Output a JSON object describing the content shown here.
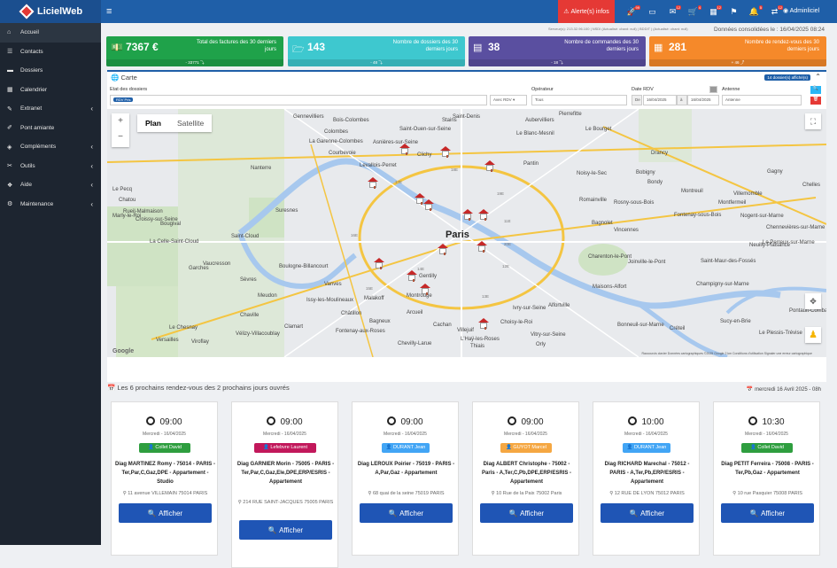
{
  "app": {
    "name": "LicielWeb",
    "alert_label": "Alerte(s) infos",
    "user": "Adminliciel"
  },
  "topicons": [
    {
      "icon": "rocket-icon",
      "badge": "99"
    },
    {
      "icon": "card-icon",
      "badge": ""
    },
    {
      "icon": "mail-icon",
      "badge": "12"
    },
    {
      "icon": "cart-icon",
      "badge": "4"
    },
    {
      "icon": "calendar-icon",
      "badge": "12"
    },
    {
      "icon": "flag-icon",
      "badge": ""
    },
    {
      "icon": "bell-icon",
      "badge": "5"
    },
    {
      "icon": "transfer-icon",
      "badge": "12"
    }
  ],
  "sidebar": [
    {
      "label": "Accueil",
      "icon": "home-icon",
      "chev": ""
    },
    {
      "label": "Contacts",
      "icon": "contacts-icon",
      "chev": ""
    },
    {
      "label": "Dossiers",
      "icon": "folder-icon",
      "chev": ""
    },
    {
      "label": "Calendrier",
      "icon": "calendar-icon",
      "chev": ""
    },
    {
      "label": "Extranet",
      "icon": "extranet-icon",
      "chev": "‹"
    },
    {
      "label": "Pont amiante",
      "icon": "bridge-icon",
      "chev": ""
    },
    {
      "label": "Compléments",
      "icon": "complements-icon",
      "chev": "‹"
    },
    {
      "label": "Outils",
      "icon": "tools-icon",
      "chev": "‹"
    },
    {
      "label": "Aide",
      "icon": "help-icon",
      "chev": "‹"
    },
    {
      "label": "Maintenance",
      "icon": "maintenance-icon",
      "chev": "‹"
    }
  ],
  "infos": {
    "server": "Serveur(s): 213.32.96.100 | NSDI (Actualisé: chant: null) | BDDIT | (Actualisé: chant: null)",
    "consolidated": "Données consolidées le : 16/04/2025 08:24"
  },
  "cards": [
    {
      "value": "7367 €",
      "label": "Total des factures des 30 derniers jours",
      "foot": "- 33771 ⤵",
      "color": "#1fa24a",
      "icon": "money-icon"
    },
    {
      "value": "143",
      "label": "Nombre de dossiers des 30 derniers jours",
      "foot": "- 48 ⤵",
      "color": "#3ec8cf",
      "icon": "folder-open-icon"
    },
    {
      "value": "38",
      "label": "Nombre de commandes des 30 derniers jours",
      "foot": "- 18 ⤵",
      "color": "#5a4fa0",
      "icon": "list-icon"
    },
    {
      "value": "281",
      "label": "Nombre de rendez-vous des 30 derniers jours",
      "foot": "+ 46 ⤴",
      "color": "#f5892a",
      "icon": "calendar-icon"
    }
  ],
  "carte": {
    "title": "Carte",
    "badge": "14 dossier(s) affiché(s)",
    "etat_label": "Etat des dossiers",
    "etat_tag": "RDV Pris",
    "rdv_select": "Avec RDV",
    "operateur_label": "Opérateur",
    "operateur_value": "Tous",
    "date_label": "Date RDV",
    "date_de": "De",
    "date_from": "16/04/2025",
    "date_a": "à",
    "date_to": "16/04/2025",
    "antenne_label": "Antenne",
    "antenne_value": "Antenne"
  },
  "map": {
    "plan": "Plan",
    "satellite": "Satellite",
    "labels": [
      {
        "t": "Paris",
        "c": "big"
      },
      {
        "t": "Nanterre"
      },
      {
        "t": "Boulogne-Billancourt"
      },
      {
        "t": "Versailles"
      },
      {
        "t": "Montreuil"
      },
      {
        "t": "Saint-Ouen-sur-Seine"
      },
      {
        "t": "Pantin"
      },
      {
        "t": "Bobigny"
      },
      {
        "t": "Rosny-sous-Bois"
      },
      {
        "t": "Vincennes"
      },
      {
        "t": "Issy-les-Moulineaux"
      },
      {
        "t": "Montrouge"
      },
      {
        "t": "Ivry-sur-Seine"
      },
      {
        "t": "Vitry-sur-Seine"
      },
      {
        "t": "Créteil"
      },
      {
        "t": "Champigny-sur-Marne"
      },
      {
        "t": "Rueil-Malmaison"
      },
      {
        "t": "Suresnes"
      },
      {
        "t": "Courbevoie"
      },
      {
        "t": "Levallois-Perret"
      },
      {
        "t": "Clichy"
      },
      {
        "t": "Asnières-sur-Seine"
      },
      {
        "t": "Colombes"
      },
      {
        "t": "La Garenne-Colombes"
      },
      {
        "t": "Bois-Colombes"
      },
      {
        "t": "Gennevilliers"
      },
      {
        "t": "Saint-Denis"
      },
      {
        "t": "Aubervilliers"
      },
      {
        "t": "Drancy"
      },
      {
        "t": "Bondy"
      },
      {
        "t": "Noisy-le-Sec"
      },
      {
        "t": "Romainville"
      },
      {
        "t": "Bagnolet"
      },
      {
        "t": "Fontenay-sous-Bois"
      },
      {
        "t": "Nogent-sur-Marne"
      },
      {
        "t": "Le Perreux-sur-Marne"
      },
      {
        "t": "Neuilly-Plaisance"
      },
      {
        "t": "Villemomble"
      },
      {
        "t": "Gagny"
      },
      {
        "t": "Chelles"
      },
      {
        "t": "Joinville-le-Pont"
      },
      {
        "t": "Maisons-Alfort"
      },
      {
        "t": "Charenton-le-Pont"
      },
      {
        "t": "Saint-Maur-des-Fossés"
      },
      {
        "t": "Sucy-en-Brie"
      },
      {
        "t": "Chennevières-sur-Marne"
      },
      {
        "t": "Le Plessis-Trévise"
      },
      {
        "t": "Meudon"
      },
      {
        "t": "Clamart"
      },
      {
        "t": "Châtillon"
      },
      {
        "t": "Malakoff"
      },
      {
        "t": "Vanves"
      },
      {
        "t": "Sèvres"
      },
      {
        "t": "Chaville"
      },
      {
        "t": "Saint-Cloud"
      },
      {
        "t": "Garches"
      },
      {
        "t": "Vaucresson"
      },
      {
        "t": "La Celle-Saint-Cloud"
      },
      {
        "t": "Bougival"
      },
      {
        "t": "Marly-le-Roi"
      },
      {
        "t": "Chatou"
      },
      {
        "t": "Croissy-sur-Seine"
      },
      {
        "t": "Le Chesnay"
      },
      {
        "t": "Viroflay"
      },
      {
        "t": "Vélizy-Villacoublay"
      },
      {
        "t": "Le Pecq"
      },
      {
        "t": "Villejuif"
      },
      {
        "t": "Arcueil"
      },
      {
        "t": "Bagneux"
      },
      {
        "t": "Cachan"
      },
      {
        "t": "Fontenay-aux-Roses"
      },
      {
        "t": "L'Haÿ-les-Roses"
      },
      {
        "t": "Chevilly-Larue"
      },
      {
        "t": "Thiais"
      },
      {
        "t": "Orly"
      },
      {
        "t": "Choisy-le-Roi"
      },
      {
        "t": "Alfortville"
      },
      {
        "t": "Bonneuil-sur-Marne"
      },
      {
        "t": "Pontault-Combault"
      },
      {
        "t": "Montfermeil"
      },
      {
        "t": "Gentilly"
      },
      {
        "t": "Le Blanc-Mesnil"
      },
      {
        "t": "Le Bourget"
      },
      {
        "t": "Stains"
      },
      {
        "t": "Pierrefitte"
      }
    ],
    "districts": [
      "17E",
      "18E",
      "19E",
      "20E",
      "16E",
      "15E",
      "14E",
      "13E",
      "12E",
      "11E"
    ],
    "attrib": "Raccourcis clavier   Données cartographiques ©2025 Google   2 km   Conditions d'utilisation   Signaler une erreur cartographique",
    "google": "Google"
  },
  "rdv": {
    "title": "Les 6 prochains rendez-vous des 2 prochains jours ouvrés",
    "date": "mercredi 16 Avril 2025 - 08h",
    "button": "Afficher",
    "items": [
      {
        "time": "09:00",
        "date": "Mercredi - 16/04/2025",
        "name": "Collet David",
        "color": "#2e9e3f",
        "desc": "Diag MARTINEZ Romy - 75014 - PARIS - Ter,Par,C,Gaz,DPE - Appartement - Studio",
        "addr": "11 avenue VILLEMAIN 75014 PARIS"
      },
      {
        "time": "09:00",
        "date": "Mercredi - 16/04/2025",
        "name": "Lefebvre Laurent",
        "color": "#c2185b",
        "desc": "Diag GARNIER Morin - 75005 - PARIS - Ter,Par,C,Gaz,Ele,DPE,ERP/ESRIS - Appartement",
        "addr": "214 RUE SAINT-JACQUES 75005 PARIS"
      },
      {
        "time": "09:00",
        "date": "Mercredi - 16/04/2025",
        "name": "DURANT Jean",
        "color": "#42a5f5",
        "desc": "Diag LEROUX Poirier - 75019 - PARIS - A,Par,Gaz - Appartement",
        "addr": "68 quai de la seine 75019 PARIS"
      },
      {
        "time": "09:00",
        "date": "Mercredi - 16/04/2025",
        "name": "GUYOT Marcel",
        "color": "#f5a742",
        "desc": "Diag ALBERT Christophe - 75002 - Paris - A,Ter,C,Pb,DPE,ERP/ESRIS - Appartement",
        "addr": "10 Rue de la Paix 75002 Paris"
      },
      {
        "time": "10:00",
        "date": "Mercredi - 16/04/2025",
        "name": "DURANT Jean",
        "color": "#42a5f5",
        "desc": "Diag RICHARD Marechal - 75012 - PARIS - A,Ter,Pb,ERP/ESRIS - Appartement",
        "addr": "12 RUE DE LYON 75012 PARIS"
      },
      {
        "time": "10:30",
        "date": "Mercredi - 16/04/2025",
        "name": "Collet David",
        "color": "#2e9e3f",
        "desc": "Diag PETIT Ferreira - 75008 - PARIS - Ter,Pb,Gaz - Appartement",
        "addr": "10 rue Pasquier 75008 PARIS"
      }
    ]
  }
}
